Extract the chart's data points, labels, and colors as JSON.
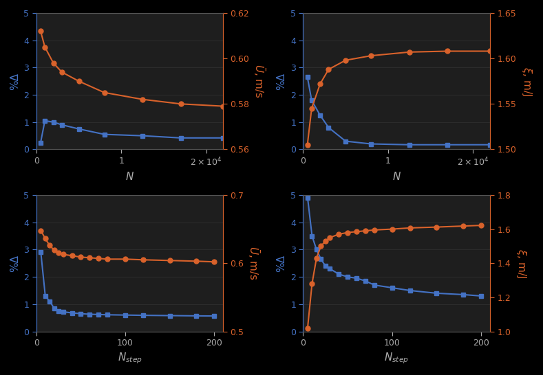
{
  "blue_color": "#4472c4",
  "orange_color": "#d9622b",
  "bg_color": "#1a1a2e",
  "fig_bg": "#0d0d0d",
  "axes_bg": "#1c1c1c",
  "spine_color": "#888888",
  "text_color": "#cccccc",
  "top_left": {
    "blue_x": [
      500,
      1000,
      2000,
      3000,
      5000,
      8000,
      12500,
      17000,
      22000
    ],
    "blue_y": [
      0.25,
      1.05,
      1.0,
      0.9,
      0.75,
      0.55,
      0.5,
      0.42,
      0.42
    ],
    "orange_x": [
      500,
      1000,
      2000,
      3000,
      5000,
      8000,
      12500,
      17000,
      22000
    ],
    "orange_right_y": [
      0.612,
      0.605,
      0.598,
      0.594,
      0.59,
      0.585,
      0.582,
      0.58,
      0.579
    ],
    "xlabel": "N",
    "ylabel_left": "%Δ",
    "ylabel_right": "$\\bar{U}$, m/s",
    "ylim_left": [
      0,
      5
    ],
    "ylim_right": [
      0.56,
      0.62
    ],
    "yticks_left": [
      0,
      1,
      2,
      3,
      4,
      5
    ],
    "yticks_right": [
      0.56,
      0.58,
      0.6,
      0.62
    ],
    "xticks": [
      0,
      10000,
      20000
    ],
    "xlim": [
      0,
      22000
    ]
  },
  "top_right": {
    "blue_x": [
      500,
      1000,
      2000,
      3000,
      5000,
      8000,
      12500,
      17000,
      22000
    ],
    "blue_y": [
      2.65,
      1.8,
      1.25,
      0.8,
      0.3,
      0.2,
      0.17,
      0.17,
      0.17
    ],
    "orange_x": [
      500,
      1000,
      2000,
      3000,
      5000,
      8000,
      12500,
      17000,
      22000
    ],
    "orange_right_y": [
      1.505,
      1.545,
      1.572,
      1.588,
      1.598,
      1.603,
      1.607,
      1.608,
      1.608
    ],
    "xlabel": "N",
    "ylabel_left": "%Δ",
    "ylabel_right": "$\\xi$, m/J",
    "ylim_left": [
      0,
      5
    ],
    "ylim_right": [
      1.5,
      1.65
    ],
    "yticks_left": [
      0,
      1,
      2,
      3,
      4,
      5
    ],
    "yticks_right": [
      1.5,
      1.55,
      1.6,
      1.65
    ],
    "xticks": [
      0,
      10000,
      20000
    ],
    "xlim": [
      0,
      22000
    ]
  },
  "bot_left": {
    "blue_x": [
      5,
      10,
      15,
      20,
      25,
      30,
      40,
      50,
      60,
      70,
      80,
      100,
      120,
      150,
      180,
      200
    ],
    "blue_y": [
      2.9,
      1.3,
      1.1,
      0.85,
      0.75,
      0.72,
      0.68,
      0.65,
      0.63,
      0.62,
      0.61,
      0.6,
      0.59,
      0.58,
      0.57,
      0.565
    ],
    "orange_x": [
      5,
      10,
      15,
      20,
      25,
      30,
      40,
      50,
      60,
      70,
      80,
      100,
      120,
      150,
      180,
      200
    ],
    "orange_right_y": [
      0.648,
      0.636,
      0.626,
      0.619,
      0.615,
      0.613,
      0.611,
      0.609,
      0.608,
      0.607,
      0.606,
      0.606,
      0.605,
      0.604,
      0.603,
      0.602
    ],
    "xlabel": "$N_{step}$",
    "ylabel_left": "%Δ",
    "ylabel_right": "$\\bar{U}$, m/s",
    "ylim_left": [
      0,
      5
    ],
    "ylim_right": [
      0.5,
      0.7
    ],
    "yticks_left": [
      0,
      1,
      2,
      3,
      4,
      5
    ],
    "yticks_right": [
      0.5,
      0.6,
      0.7
    ],
    "xticks": [
      0,
      100,
      200
    ],
    "xlim": [
      0,
      210
    ]
  },
  "bot_right": {
    "blue_x": [
      5,
      10,
      15,
      20,
      25,
      30,
      40,
      50,
      60,
      70,
      80,
      100,
      120,
      150,
      180,
      200
    ],
    "blue_y": [
      4.9,
      3.5,
      3.0,
      2.65,
      2.4,
      2.3,
      2.1,
      2.0,
      1.95,
      1.85,
      1.7,
      1.6,
      1.5,
      1.4,
      1.35,
      1.3
    ],
    "orange_x": [
      5,
      10,
      15,
      20,
      25,
      30,
      40,
      50,
      60,
      70,
      80,
      100,
      120,
      150,
      180,
      200
    ],
    "orange_right_y": [
      1.02,
      1.28,
      1.43,
      1.5,
      1.53,
      1.55,
      1.57,
      1.58,
      1.585,
      1.59,
      1.595,
      1.6,
      1.607,
      1.612,
      1.618,
      1.622
    ],
    "xlabel": "$N_{step}$",
    "ylabel_left": "%Δ",
    "ylabel_right": "$\\xi$, m/J",
    "ylim_left": [
      0,
      5
    ],
    "ylim_right": [
      1.0,
      1.8
    ],
    "yticks_left": [
      0,
      1,
      2,
      3,
      4,
      5
    ],
    "yticks_right": [
      1.0,
      1.2,
      1.4,
      1.6,
      1.8
    ],
    "xticks": [
      0,
      100,
      200
    ],
    "xlim": [
      0,
      210
    ]
  }
}
